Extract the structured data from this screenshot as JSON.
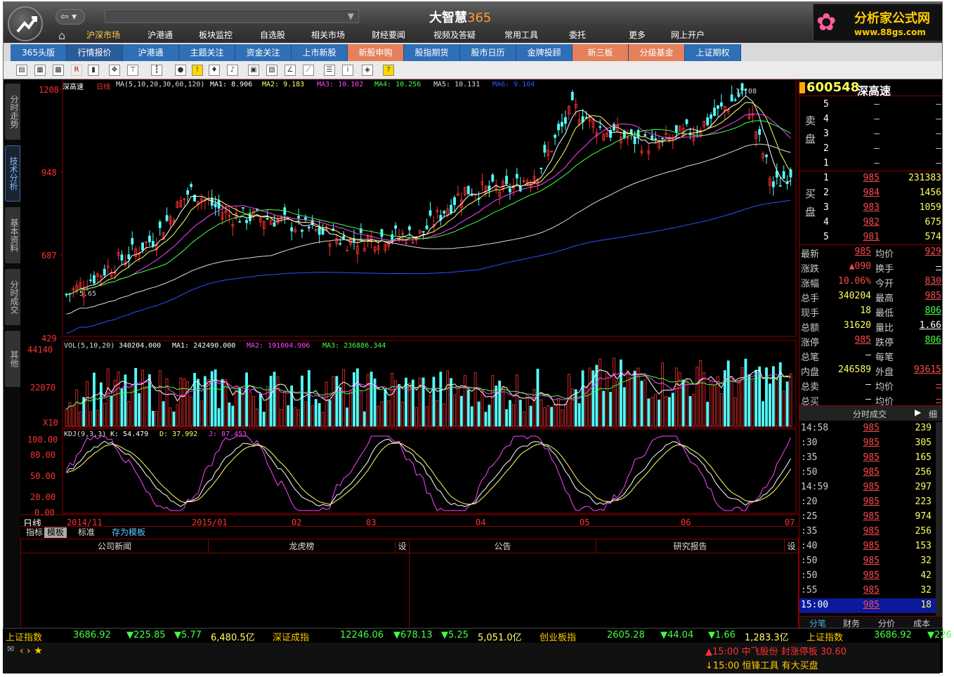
{
  "app": {
    "title_main": "大智慧",
    "title_num": "365",
    "brand_name": "分析家公式网",
    "brand_url": "www.88gs.com"
  },
  "menu": [
    "沪深市场",
    "沪港通",
    "板块监控",
    "自选股",
    "相关市场",
    "财经要闻",
    "视频及答疑",
    "常用工具",
    "委托",
    "更多",
    "网上开户"
  ],
  "nav2": [
    "365头版",
    "行情报价",
    "沪港通",
    "主题关注",
    "资金关注",
    "上市新股",
    "新股申购",
    "股指期货",
    "股市日历",
    "金牌投顾",
    "新三板",
    "分级基金",
    "上证期权"
  ],
  "left_tabs": [
    "分时走势",
    "技术分析",
    "基本资料",
    "分时成交",
    "其他"
  ],
  "chart": {
    "stock_label": "深高速",
    "period": "日线",
    "ma_line": "MA(5,10,20,30,60,120)",
    "ma_values": [
      "MA1: 8.906",
      "MA2: 9.183",
      "MA3: 10.102",
      "MA4: 10.256",
      "MA5: 10.131",
      "MA6: 9.104"
    ],
    "price_axis": [
      "1208",
      "948",
      "687",
      "429"
    ],
    "high_marker": "12.08",
    "low_marker": "5.65",
    "vol_header": "VOL(5,10,20)",
    "vol_values": [
      "340204.000",
      "MA1: 242490.000",
      "MA2: 191004.906",
      "MA3: 236886.344"
    ],
    "vol_axis": [
      "44140",
      "22070",
      "X10"
    ],
    "kdj_header": "KDJ(9,3,3)",
    "kdj_values": [
      "K: 54.479",
      "D: 37.992",
      "J: 87.453"
    ],
    "kdj_axis": [
      "100.00",
      "80.00",
      "50.00",
      "20.00",
      "0.00"
    ],
    "date_axis": [
      "2014/11",
      "2015/01",
      "02",
      "03",
      "04",
      "05",
      "06",
      "07"
    ],
    "period_indicator": "日线"
  },
  "bottom_tabs": [
    "指标",
    "模板",
    "标准",
    "存为模板"
  ],
  "news_headers": [
    "公司新闻",
    "龙虎榜",
    "设",
    "公告",
    "研究报告",
    "设"
  ],
  "quote": {
    "code": "600548",
    "name": "深高速",
    "sell_label": "卖盘",
    "buy_label": "买盘",
    "sell": [
      [
        "5",
        "—",
        "—"
      ],
      [
        "4",
        "—",
        "—"
      ],
      [
        "3",
        "—",
        "—"
      ],
      [
        "2",
        "—",
        "—"
      ],
      [
        "1",
        "—",
        "—"
      ]
    ],
    "buy": [
      [
        "1",
        "985",
        "231383"
      ],
      [
        "2",
        "984",
        "1456"
      ],
      [
        "3",
        "983",
        "1059"
      ],
      [
        "4",
        "982",
        "675"
      ],
      [
        "5",
        "981",
        "574"
      ]
    ],
    "stats": [
      [
        "最新",
        "985",
        "均价",
        "929"
      ],
      [
        "涨跌",
        "▲090",
        "换手",
        "—"
      ],
      [
        "涨幅",
        "10.06%",
        "今开",
        "830"
      ],
      [
        "总手",
        "340204",
        "最高",
        "985"
      ],
      [
        "现手",
        "18",
        "最低",
        "806"
      ],
      [
        "总额",
        "31620",
        "量比",
        "1.66"
      ],
      [
        "涨停",
        "985",
        "跌停",
        "806"
      ],
      [
        "总笔",
        "—",
        "每笔",
        ""
      ],
      [
        "内盘",
        "246589",
        "外盘",
        "93615"
      ],
      [
        "总卖",
        "—",
        "均价",
        "—"
      ],
      [
        "总买",
        "—",
        "均价",
        "—"
      ]
    ],
    "ticks_header": "分时成交",
    "ticks_more": "细",
    "ticks": [
      [
        "14:58",
        "985",
        "239"
      ],
      [
        ":30",
        "985",
        "305"
      ],
      [
        ":35",
        "985",
        "165"
      ],
      [
        ":50",
        "985",
        "256"
      ],
      [
        "14:59",
        "985",
        "297"
      ],
      [
        ":20",
        "985",
        "223"
      ],
      [
        ":25",
        "985",
        "974"
      ],
      [
        ":35",
        "985",
        "256"
      ],
      [
        ":40",
        "985",
        "153"
      ],
      [
        ":50",
        "985",
        "32"
      ],
      [
        ":50",
        "985",
        "42"
      ],
      [
        ":55",
        "985",
        "32"
      ],
      [
        "15:00",
        "985",
        "18"
      ]
    ],
    "bottom_tabs": [
      "分笔",
      "财务",
      "分价",
      "成本"
    ]
  },
  "ticker": [
    {
      "name": "上证指数",
      "v": "3686.92",
      "c1": "▼225.85",
      "c2": "▼5.77",
      "amt": "6,480.5亿"
    },
    {
      "name": "深证成指",
      "v": "12246.06",
      "c1": "▼678.13",
      "c2": "▼5.25",
      "amt": "5,051.0亿"
    },
    {
      "name": "创业板指",
      "v": "2605.28",
      "c1": "▼44.04",
      "c2": "▼1.66",
      "amt": "1,283.3亿"
    },
    {
      "name": "上证指数",
      "v": "3686.92",
      "c1": "▼226"
    }
  ],
  "alerts": [
    "▲15:00 中飞股份 封涨停板 30.60",
    "↓15:00 恒锋工具 有大买盘"
  ],
  "status_icons": "‹ › ★"
}
